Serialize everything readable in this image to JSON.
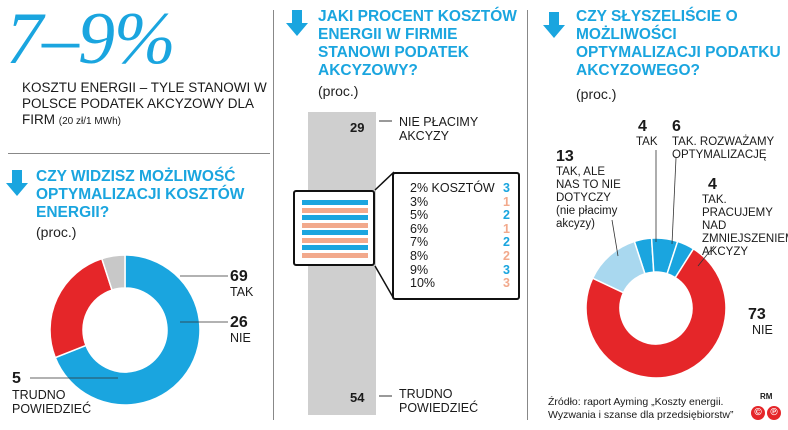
{
  "headline": {
    "value": "7–9%",
    "text": "KOSZTU ENERGII – TYLE STANOWI W POLSCE PODATEK AKCYZOWY DLA FIRM",
    "note": "(20 zł/1 MWh)"
  },
  "colors": {
    "blue": "#1aa5df",
    "red": "#e52629",
    "light_blue": "#a9d8ef",
    "gray": "#c8c8c8",
    "salmon": "#f2a98c"
  },
  "chart_data": [
    {
      "type": "pie",
      "title": "CZY WIDZISZ MOŻLIWOŚĆ OPTYMALIZACJI KOSZTÓW ENERGII?",
      "unit": "(proc.)",
      "slices": [
        {
          "label": "TAK",
          "value": 69,
          "color": "#1aa5df"
        },
        {
          "label": "NIE",
          "value": 26,
          "color": "#e52629"
        },
        {
          "label": "TRUDNO POWIEDZIEĆ",
          "value": 5,
          "color": "#c8c8c8"
        }
      ]
    },
    {
      "type": "bar",
      "title": "JAKI PROCENT KOSZTÓW ENERGII W FIRMIE STANOWI PODATEK AKCYZOWY?",
      "unit": "(proc.)",
      "segments": [
        {
          "label": "NIE PŁACIMY AKCYZY",
          "value": 29
        },
        {
          "label": "2% KOSZTÓW",
          "value": 3,
          "color": "#1aa5df"
        },
        {
          "label": "3%",
          "value": 1,
          "color": "#f2a98c"
        },
        {
          "label": "5%",
          "value": 2,
          "color": "#1aa5df"
        },
        {
          "label": "6%",
          "value": 1,
          "color": "#f2a98c"
        },
        {
          "label": "7%",
          "value": 2,
          "color": "#1aa5df"
        },
        {
          "label": "8%",
          "value": 2,
          "color": "#f2a98c"
        },
        {
          "label": "9%",
          "value": 3,
          "color": "#1aa5df"
        },
        {
          "label": "10%",
          "value": 3,
          "color": "#f2a98c"
        },
        {
          "label": "TRUDNO POWIEDZIEĆ",
          "value": 54
        }
      ]
    },
    {
      "type": "pie",
      "title": "CZY SŁYSZELIŚCIE O MOŻLIWOŚCI OPTYMALIZACJI PODATKU AKCYZOWEGO?",
      "unit": "(proc.)",
      "slices": [
        {
          "label": "TAK",
          "value": 4,
          "color": "#1aa5df"
        },
        {
          "label": "TAK. ROZWAŻAMY OPTYMALIZACJĘ",
          "value": 6,
          "color": "#1aa5df"
        },
        {
          "label": "TAK. PRACUJEMY NAD ZMNIEJSZENIEM AKCYZY",
          "value": 4,
          "color": "#1aa5df"
        },
        {
          "label": "NIE",
          "value": 73,
          "color": "#e52629"
        },
        {
          "label": "TAK, ALE NAS TO NIE DOTYCZY (nie płacimy akcyzy)",
          "value": 13,
          "color": "#a9d8ef"
        }
      ]
    }
  ],
  "q1": {
    "title": "CZY WIDZISZ MOŻLIWOŚĆ OPTYMALIZACJI KOSZTÓW ENERGII?",
    "unit": "(proc.)",
    "l1": {
      "num": "69",
      "text": "TAK"
    },
    "l2": {
      "num": "26",
      "text": "NIE"
    },
    "l3": {
      "num": "5",
      "text": "TRUDNO POWIEDZIEĆ"
    }
  },
  "q2": {
    "title": "JAKI PROCENT KOSZTÓW ENERGII W FIRMIE STANOWI PODATEK AKCYZOWY?",
    "unit": "(proc.)",
    "top": {
      "num": "29",
      "text": "NIE PŁACIMY AKCYZY"
    },
    "bottom": {
      "num": "54",
      "text": "TRUDNO POWIEDZIEĆ"
    },
    "rows": [
      {
        "label": "2% KOSZTÓW",
        "val": "3",
        "color": "#1aa5df"
      },
      {
        "label": "3%",
        "val": "1",
        "color": "#f2a98c"
      },
      {
        "label": "5%",
        "val": "2",
        "color": "#1aa5df"
      },
      {
        "label": "6%",
        "val": "1",
        "color": "#f2a98c"
      },
      {
        "label": "7%",
        "val": "2",
        "color": "#1aa5df"
      },
      {
        "label": "8%",
        "val": "2",
        "color": "#f2a98c"
      },
      {
        "label": "9%",
        "val": "3",
        "color": "#1aa5df"
      },
      {
        "label": "10%",
        "val": "3",
        "color": "#f2a98c"
      }
    ]
  },
  "q3": {
    "title": "CZY SŁYSZELIŚCIE O MOŻLIWOŚCI OPTYMALIZACJI PODATKU AKCYZOWEGO?",
    "unit": "(proc.)",
    "l_tak": {
      "num": "4",
      "text": "TAK"
    },
    "l_rozw": {
      "num": "6",
      "text": "TAK. ROZWAŻAMY OPTYMALIZACJĘ"
    },
    "l_prac": {
      "num": "4",
      "text": "TAK. PRACUJEMY NAD ZMNIEJSZENIEM AKCYZY"
    },
    "l_nie": {
      "num": "73",
      "text": "NIE"
    },
    "l_ale": {
      "num": "13",
      "text": "TAK, ALE NAS TO NIE DOTYCZY (nie płacimy akcyzy)"
    }
  },
  "source": "Źródło: raport Ayming „Koszty energii. Wyzwania i szanse dla przedsiębiorstw”",
  "credit": "RM"
}
